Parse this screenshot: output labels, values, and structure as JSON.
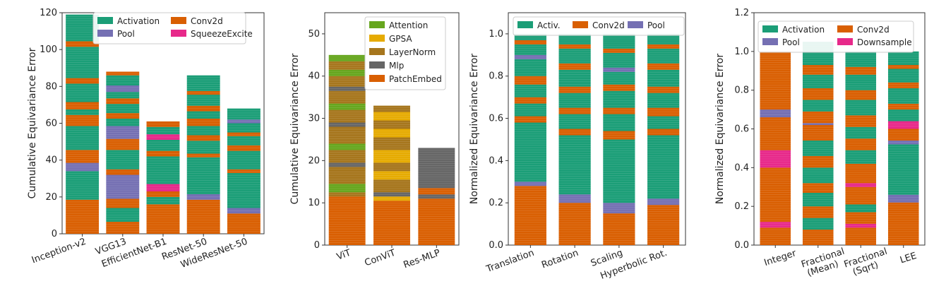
{
  "colors": {
    "Activation": "#1b9e77",
    "Activ.": "#1b9e77",
    "Conv2d": "#d95f02",
    "Pool": "#7570b3",
    "SqueezeExcite": "#e7298a",
    "Downsample": "#e7298a",
    "Attention": "#66a61e",
    "GPSA": "#e6ab02",
    "LayerNorm": "#a6761d",
    "Mlp": "#666666",
    "PatchEmbed": "#d95f02"
  },
  "chart_data": [
    {
      "type": "bar",
      "stacked": true,
      "ylabel": "Cumulative Equivariance Error",
      "ylim": [
        0,
        120
      ],
      "yticks": [
        0,
        20,
        40,
        60,
        80,
        100,
        120
      ],
      "categories": [
        "Inception-v2",
        "VGG13",
        "EfficientNet-B1",
        "ResNet-50",
        "WideResNet-50"
      ],
      "legend": [
        "Activation",
        "Conv2d",
        "Pool",
        "SqueezeExcite"
      ],
      "legend_cols": 2,
      "legend_position": "top-right",
      "stacks": [
        [
          [
            "Conv2d",
            18.5
          ],
          [
            "Activation",
            15.5
          ],
          [
            "Pool",
            4.5
          ],
          [
            "Conv2d",
            7
          ],
          [
            "Activation",
            13
          ],
          [
            "Conv2d",
            6
          ],
          [
            "Activation",
            3
          ],
          [
            "Conv2d",
            4
          ],
          [
            "Activation",
            10
          ],
          [
            "Conv2d",
            3
          ],
          [
            "Activation",
            17
          ],
          [
            "Conv2d",
            3
          ],
          [
            "Activation",
            11
          ],
          [
            "Activation",
            3.5
          ]
        ],
        [
          [
            "Conv2d",
            6.5
          ],
          [
            "Activation",
            7.5
          ],
          [
            "Conv2d",
            5
          ],
          [
            "Pool",
            13
          ],
          [
            "Conv2d",
            3
          ],
          [
            "Activation",
            10.5
          ],
          [
            "Conv2d",
            6
          ],
          [
            "Pool",
            7
          ],
          [
            "Activation",
            4
          ],
          [
            "Conv2d",
            3
          ],
          [
            "Activation",
            5
          ],
          [
            "Conv2d",
            3
          ],
          [
            "Activation",
            3.5
          ],
          [
            "Pool",
            3.5
          ],
          [
            "Activation",
            5.5
          ],
          [
            "Conv2d",
            2
          ]
        ],
        [
          [
            "Conv2d",
            16
          ],
          [
            "Activation",
            4
          ],
          [
            "Conv2d",
            3
          ],
          [
            "SqueezeExcite",
            4
          ],
          [
            "Activation",
            15
          ],
          [
            "Conv2d",
            3
          ],
          [
            "Activation",
            6
          ],
          [
            "SqueezeExcite",
            3
          ],
          [
            "Activation",
            4
          ],
          [
            "Conv2d",
            3
          ]
        ],
        [
          [
            "Conv2d",
            18.5
          ],
          [
            "Pool",
            3
          ],
          [
            "Activation",
            20
          ],
          [
            "Conv2d",
            2
          ],
          [
            "Activation",
            7
          ],
          [
            "Conv2d",
            3
          ],
          [
            "Activation",
            5
          ],
          [
            "Conv2d",
            4
          ],
          [
            "Activation",
            4
          ],
          [
            "Conv2d",
            3
          ],
          [
            "Activation",
            6
          ],
          [
            "Conv2d",
            2
          ],
          [
            "Activation",
            8.5
          ]
        ],
        [
          [
            "Conv2d",
            11
          ],
          [
            "Pool",
            3
          ],
          [
            "Activation",
            19
          ],
          [
            "Conv2d",
            2
          ],
          [
            "Activation",
            10
          ],
          [
            "Conv2d",
            3
          ],
          [
            "Activation",
            5
          ],
          [
            "Conv2d",
            2
          ],
          [
            "Activation",
            5
          ],
          [
            "Pool",
            2
          ],
          [
            "Activation",
            6
          ]
        ]
      ]
    },
    {
      "type": "bar",
      "stacked": true,
      "ylabel": "Cumulative Equivariance Error",
      "ylim": [
        0,
        55
      ],
      "yticks": [
        0,
        10,
        20,
        30,
        40,
        50
      ],
      "categories": [
        "ViT",
        "ConViT",
        "Res-MLP"
      ],
      "legend": [
        "Attention",
        "GPSA",
        "LayerNorm",
        "Mlp",
        "PatchEmbed"
      ],
      "legend_cols": 1,
      "legend_position": "top-right",
      "stacks": [
        [
          [
            "PatchEmbed",
            11.5
          ],
          [
            "LayerNorm",
            1
          ],
          [
            "Attention",
            2
          ],
          [
            "LayerNorm",
            4
          ],
          [
            "Mlp",
            1
          ],
          [
            "LayerNorm",
            3
          ],
          [
            "Attention",
            1.5
          ],
          [
            "LayerNorm",
            4
          ],
          [
            "Mlp",
            1
          ],
          [
            "LayerNorm",
            3
          ],
          [
            "Attention",
            1.5
          ],
          [
            "LayerNorm",
            3
          ],
          [
            "Mlp",
            1
          ],
          [
            "LayerNorm",
            2.5
          ],
          [
            "Attention",
            1.5
          ],
          [
            "LayerNorm",
            2
          ],
          [
            "Attention",
            1.5
          ]
        ],
        [
          [
            "PatchEmbed",
            10.5
          ],
          [
            "GPSA",
            1
          ],
          [
            "Mlp",
            1
          ],
          [
            "LayerNorm",
            3
          ],
          [
            "GPSA",
            2
          ],
          [
            "LayerNorm",
            2
          ],
          [
            "GPSA",
            3
          ],
          [
            "LayerNorm",
            3
          ],
          [
            "GPSA",
            2
          ],
          [
            "LayerNorm",
            2
          ],
          [
            "GPSA",
            2
          ],
          [
            "LayerNorm",
            1.5
          ]
        ],
        [
          [
            "PatchEmbed",
            11
          ],
          [
            "Mlp",
            1
          ],
          [
            "PatchEmbed",
            1.5
          ],
          [
            "Mlp",
            9.5
          ]
        ]
      ]
    },
    {
      "type": "bar",
      "stacked": true,
      "ylabel": "Normalized Equivariance Error",
      "ylim": [
        0,
        1.1
      ],
      "yticks": [
        0.0,
        0.2,
        0.4,
        0.6,
        0.8,
        1.0
      ],
      "categories": [
        "Translation",
        "Rotation",
        "Scaling",
        "Hyperbolic Rot."
      ],
      "legend": [
        "Activ.",
        "Conv2d",
        "Pool"
      ],
      "legend_cols": 3,
      "legend_position": "top",
      "stacks": [
        [
          [
            "Conv2d",
            0.28
          ],
          [
            "Pool",
            0.02
          ],
          [
            "Activation",
            0.28
          ],
          [
            "Conv2d",
            0.03
          ],
          [
            "Activation",
            0.06
          ],
          [
            "Conv2d",
            0.03
          ],
          [
            "Activation",
            0.06
          ],
          [
            "Conv2d",
            0.04
          ],
          [
            "Activation",
            0.08
          ],
          [
            "Pool",
            0.02
          ],
          [
            "Activation",
            0.05
          ],
          [
            "Conv2d",
            0.02
          ],
          [
            "Activation",
            0.03
          ]
        ],
        [
          [
            "Conv2d",
            0.2
          ],
          [
            "Pool",
            0.04
          ],
          [
            "Activation",
            0.28
          ],
          [
            "Conv2d",
            0.03
          ],
          [
            "Activation",
            0.07
          ],
          [
            "Conv2d",
            0.03
          ],
          [
            "Activation",
            0.07
          ],
          [
            "Conv2d",
            0.03
          ],
          [
            "Activation",
            0.08
          ],
          [
            "Conv2d",
            0.03
          ],
          [
            "Activation",
            0.07
          ],
          [
            "Conv2d",
            0.02
          ],
          [
            "Activation",
            0.05
          ]
        ],
        [
          [
            "Conv2d",
            0.15
          ],
          [
            "Pool",
            0.05
          ],
          [
            "Activation",
            0.3
          ],
          [
            "Conv2d",
            0.04
          ],
          [
            "Activation",
            0.08
          ],
          [
            "Conv2d",
            0.03
          ],
          [
            "Activation",
            0.08
          ],
          [
            "Conv2d",
            0.03
          ],
          [
            "Activation",
            0.06
          ],
          [
            "Pool",
            0.02
          ],
          [
            "Activation",
            0.07
          ],
          [
            "Conv2d",
            0.02
          ],
          [
            "Activation",
            0.07
          ]
        ],
        [
          [
            "Conv2d",
            0.19
          ],
          [
            "Pool",
            0.03
          ],
          [
            "Activation",
            0.3
          ],
          [
            "Conv2d",
            0.03
          ],
          [
            "Activation",
            0.06
          ],
          [
            "Conv2d",
            0.04
          ],
          [
            "Activation",
            0.07
          ],
          [
            "Conv2d",
            0.03
          ],
          [
            "Activation",
            0.08
          ],
          [
            "Conv2d",
            0.03
          ],
          [
            "Activation",
            0.07
          ],
          [
            "Conv2d",
            0.02
          ],
          [
            "Activation",
            0.05
          ]
        ]
      ]
    },
    {
      "type": "bar",
      "stacked": true,
      "ylabel": "Normalized Equivariance Error",
      "ylim": [
        0,
        1.2
      ],
      "yticks": [
        0.0,
        0.2,
        0.4,
        0.6,
        0.8,
        1.0,
        1.2
      ],
      "categories": [
        "Integer",
        "Fractional\n(Mean)",
        "Fractional\n(Sqrt)",
        "LEE"
      ],
      "legend": [
        "Activation",
        "Conv2d",
        "Pool",
        "Downsample"
      ],
      "legend_cols": 2,
      "legend_position": "top",
      "stacks": [
        [
          [
            "Conv2d",
            0.09
          ],
          [
            "Downsample",
            0.03
          ],
          [
            "Conv2d",
            0.28
          ],
          [
            "Downsample",
            0.09
          ],
          [
            "Conv2d",
            0.17
          ],
          [
            "Pool",
            0.04
          ],
          [
            "Conv2d",
            0.3
          ]
        ],
        [
          [
            "Conv2d",
            0.08
          ],
          [
            "Activation",
            0.06
          ],
          [
            "Conv2d",
            0.06
          ],
          [
            "Activation",
            0.07
          ],
          [
            "Conv2d",
            0.05
          ],
          [
            "Activation",
            0.08
          ],
          [
            "Conv2d",
            0.06
          ],
          [
            "Activation",
            0.08
          ],
          [
            "Conv2d",
            0.08
          ],
          [
            "Pool",
            0.01
          ],
          [
            "Conv2d",
            0.06
          ],
          [
            "Activation",
            0.06
          ],
          [
            "Conv2d",
            0.06
          ],
          [
            "Activation",
            0.07
          ],
          [
            "Conv2d",
            0.05
          ],
          [
            "Activation",
            0.07
          ],
          [
            "Activation",
            0.05
          ]
        ],
        [
          [
            "Conv2d",
            0.09
          ],
          [
            "Downsample",
            0.02
          ],
          [
            "Conv2d",
            0.06
          ],
          [
            "Activation",
            0.04
          ],
          [
            "Conv2d",
            0.09
          ],
          [
            "Downsample",
            0.02
          ],
          [
            "Conv2d",
            0.1
          ],
          [
            "Activation",
            0.07
          ],
          [
            "Conv2d",
            0.06
          ],
          [
            "Activation",
            0.06
          ],
          [
            "Conv2d",
            0.06
          ],
          [
            "Activation",
            0.08
          ],
          [
            "Conv2d",
            0.05
          ],
          [
            "Activation",
            0.08
          ],
          [
            "Conv2d",
            0.04
          ],
          [
            "Activation",
            0.08
          ]
        ],
        [
          [
            "Conv2d",
            0.22
          ],
          [
            "Pool",
            0.04
          ],
          [
            "Activation",
            0.26
          ],
          [
            "Pool",
            0.02
          ],
          [
            "Conv2d",
            0.06
          ],
          [
            "Downsample",
            0.04
          ],
          [
            "Activation",
            0.06
          ],
          [
            "Conv2d",
            0.03
          ],
          [
            "Activation",
            0.08
          ],
          [
            "Conv2d",
            0.03
          ],
          [
            "Activation",
            0.07
          ],
          [
            "Conv2d",
            0.02
          ],
          [
            "Activation",
            0.07
          ]
        ]
      ]
    }
  ]
}
